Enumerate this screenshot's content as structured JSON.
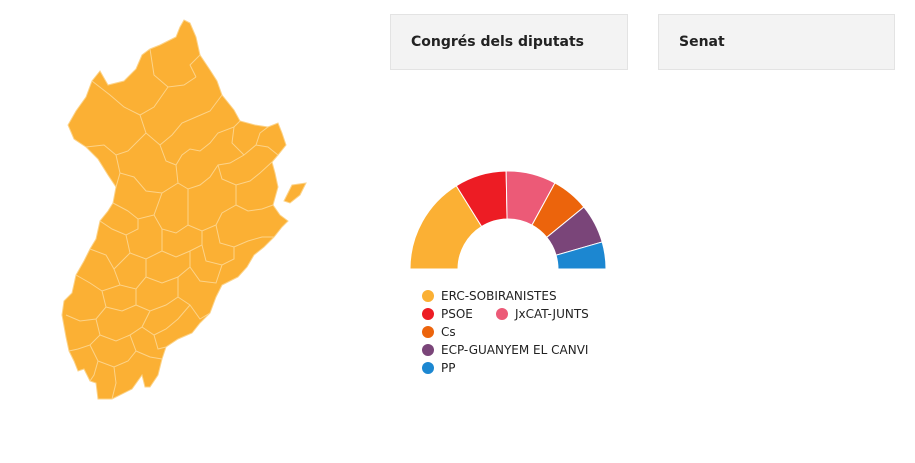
{
  "tabs": [
    {
      "label": "Congrés dels diputats"
    },
    {
      "label": "Senat"
    }
  ],
  "map": {
    "fill_color": "#FBB034",
    "border_color": "#FCD389"
  },
  "chart_data": {
    "type": "pie",
    "subtype": "semicircle",
    "title": "",
    "series": [
      {
        "name": "ERC-SOBIRANISTES",
        "color": "#FBB034",
        "share": 0.323
      },
      {
        "name": "PSOE",
        "color": "#ED1C24",
        "share": 0.171
      },
      {
        "name": "JxCAT-JUNTS",
        "color": "#EC5A77",
        "share": 0.165
      },
      {
        "name": "Cs",
        "color": "#EC640C",
        "share": 0.123
      },
      {
        "name": "ECP-GUANYEM EL CANVI",
        "color": "#7A4579",
        "share": 0.129
      },
      {
        "name": "PP",
        "color": "#1C87D1",
        "share": 0.089
      }
    ]
  }
}
